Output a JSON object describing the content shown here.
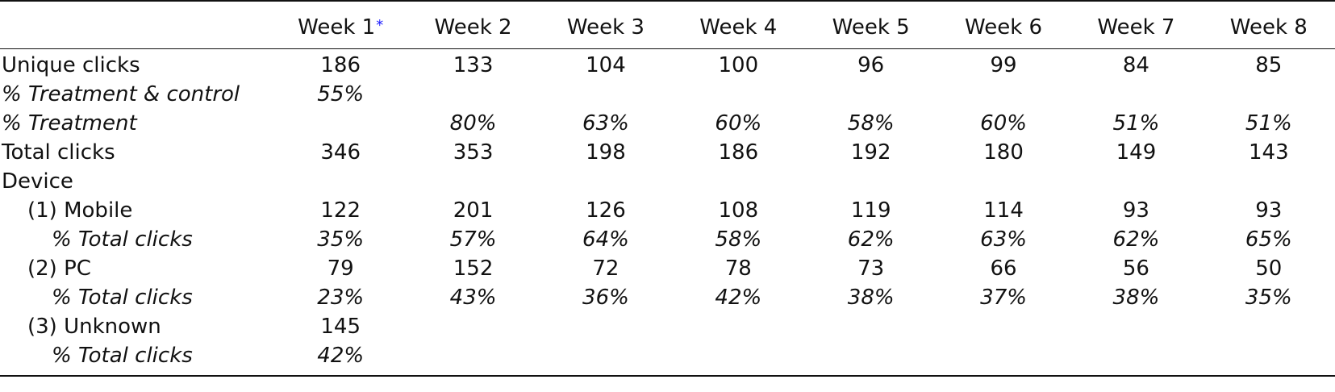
{
  "table": {
    "header": {
      "label": "",
      "weeks": [
        "Week 1",
        "Week 2",
        "Week 3",
        "Week 4",
        "Week 5",
        "Week 6",
        "Week 7",
        "Week 8"
      ],
      "week1_marker": "*"
    },
    "rows": [
      {
        "label": "Unique clicks",
        "values": [
          "186",
          "133",
          "104",
          "100",
          "96",
          "99",
          "84",
          "85"
        ]
      },
      {
        "label": "% Treatment & control",
        "values": [
          "55%",
          "",
          "",
          "",
          "",
          "",
          "",
          ""
        ]
      },
      {
        "label": "% Treatment",
        "values": [
          "",
          "80%",
          "63%",
          "60%",
          "58%",
          "60%",
          "51%",
          "51%"
        ]
      },
      {
        "label": "Total clicks",
        "values": [
          "346",
          "353",
          "198",
          "186",
          "192",
          "180",
          "149",
          "143"
        ]
      },
      {
        "label": "Device",
        "values": [
          "",
          "",
          "",
          "",
          "",
          "",
          "",
          ""
        ]
      },
      {
        "label": "(1) Mobile",
        "values": [
          "122",
          "201",
          "126",
          "108",
          "119",
          "114",
          "93",
          "93"
        ]
      },
      {
        "label": "% Total clicks",
        "values": [
          "35%",
          "57%",
          "64%",
          "58%",
          "62%",
          "63%",
          "62%",
          "65%"
        ]
      },
      {
        "label": "(2) PC",
        "values": [
          "79",
          "152",
          "72",
          "78",
          "73",
          "66",
          "56",
          "50"
        ]
      },
      {
        "label": "% Total clicks",
        "values": [
          "23%",
          "43%",
          "36%",
          "42%",
          "38%",
          "37%",
          "38%",
          "35%"
        ]
      },
      {
        "label": "(3) Unknown",
        "values": [
          "145",
          "",
          "",
          "",
          "",
          "",
          "",
          ""
        ]
      },
      {
        "label": "% Total clicks",
        "values": [
          "42%",
          "",
          "",
          "",
          "",
          "",
          "",
          ""
        ]
      }
    ]
  },
  "colors": {
    "text": "#111111",
    "marker": "#1a1aff",
    "rule": "#111111"
  }
}
